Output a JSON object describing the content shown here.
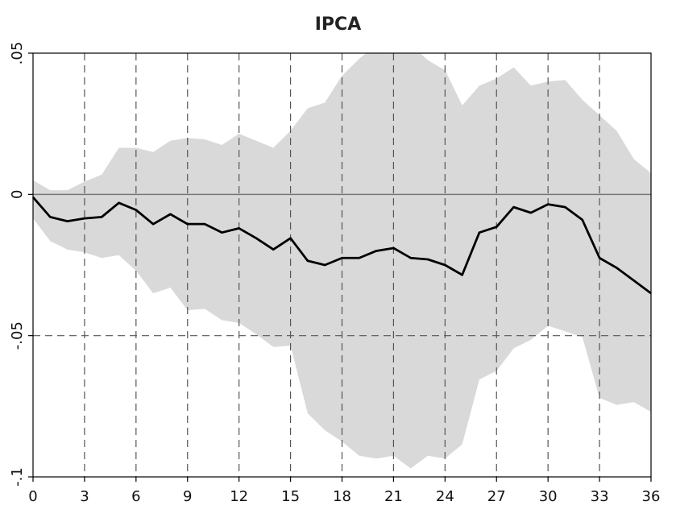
{
  "chart_data": {
    "type": "line",
    "title": "IPCA",
    "xlabel": "",
    "ylabel": "",
    "xlim": [
      0,
      36
    ],
    "ylim": [
      -0.1,
      0.05
    ],
    "x_ticks": [
      0,
      3,
      6,
      9,
      12,
      15,
      18,
      21,
      24,
      27,
      30,
      33,
      36
    ],
    "x_tick_labels": [
      "0",
      "3",
      "6",
      "9",
      "12",
      "15",
      "18",
      "21",
      "24",
      "27",
      "30",
      "33",
      "36"
    ],
    "y_ticks": [
      -0.1,
      -0.05,
      0,
      0.05
    ],
    "y_tick_labels": [
      "-.1",
      "-.05",
      "0",
      ".05"
    ],
    "grid": "dashed vertical lines at x ticks; dashed horizontal line at -.05; solid reference line at 0",
    "x": [
      0,
      1,
      2,
      3,
      4,
      5,
      6,
      7,
      8,
      9,
      10,
      11,
      12,
      13,
      14,
      15,
      16,
      17,
      18,
      19,
      20,
      21,
      22,
      23,
      24,
      25,
      26,
      27,
      28,
      29,
      30,
      31,
      32,
      33,
      34,
      35,
      36
    ],
    "series": [
      {
        "values": [
          -0.001,
          -0.008,
          -0.0095,
          -0.0085,
          -0.008,
          -0.003,
          -0.0055,
          -0.0105,
          -0.007,
          -0.0105,
          -0.0105,
          -0.0135,
          -0.012,
          -0.0155,
          -0.0195,
          -0.0155,
          -0.0235,
          -0.025,
          -0.0225,
          -0.0225,
          -0.02,
          -0.019,
          -0.0225,
          -0.023,
          -0.025,
          -0.0285,
          -0.0135,
          -0.0115,
          -0.0045,
          -0.0065,
          -0.0035,
          -0.0045,
          -0.009,
          -0.0225,
          -0.026,
          -0.0305,
          -0.035
        ],
        "color": "#000000"
      }
    ],
    "band": {
      "upper": [
        0.005,
        0.0015,
        0.0015,
        0.0045,
        0.007,
        0.0165,
        0.0165,
        0.015,
        0.019,
        0.02,
        0.0195,
        0.0175,
        0.0215,
        0.019,
        0.0165,
        0.0225,
        0.0305,
        0.0325,
        0.042,
        0.048,
        0.053,
        0.0545,
        0.053,
        0.0475,
        0.044,
        0.0315,
        0.0385,
        0.041,
        0.045,
        0.0385,
        0.04,
        0.0405,
        0.0335,
        0.028,
        0.0225,
        0.0125,
        0.0075
      ],
      "lower": [
        -0.0085,
        -0.0165,
        -0.0195,
        -0.0205,
        -0.0225,
        -0.0215,
        -0.027,
        -0.035,
        -0.033,
        -0.041,
        -0.0405,
        -0.0445,
        -0.0455,
        -0.0495,
        -0.054,
        -0.0535,
        -0.0775,
        -0.0835,
        -0.0875,
        -0.0925,
        -0.0935,
        -0.0925,
        -0.097,
        -0.0925,
        -0.0935,
        -0.0885,
        -0.0655,
        -0.0625,
        -0.0545,
        -0.0515,
        -0.0465,
        -0.0485,
        -0.0505,
        -0.072,
        -0.0745,
        -0.0735,
        -0.077
      ],
      "color": "#d9d9d9"
    },
    "colors": {
      "band": "#d9d9d9",
      "line": "#000000",
      "grid": "#555555",
      "zero_line": "#777777",
      "axis": "#000000"
    }
  }
}
